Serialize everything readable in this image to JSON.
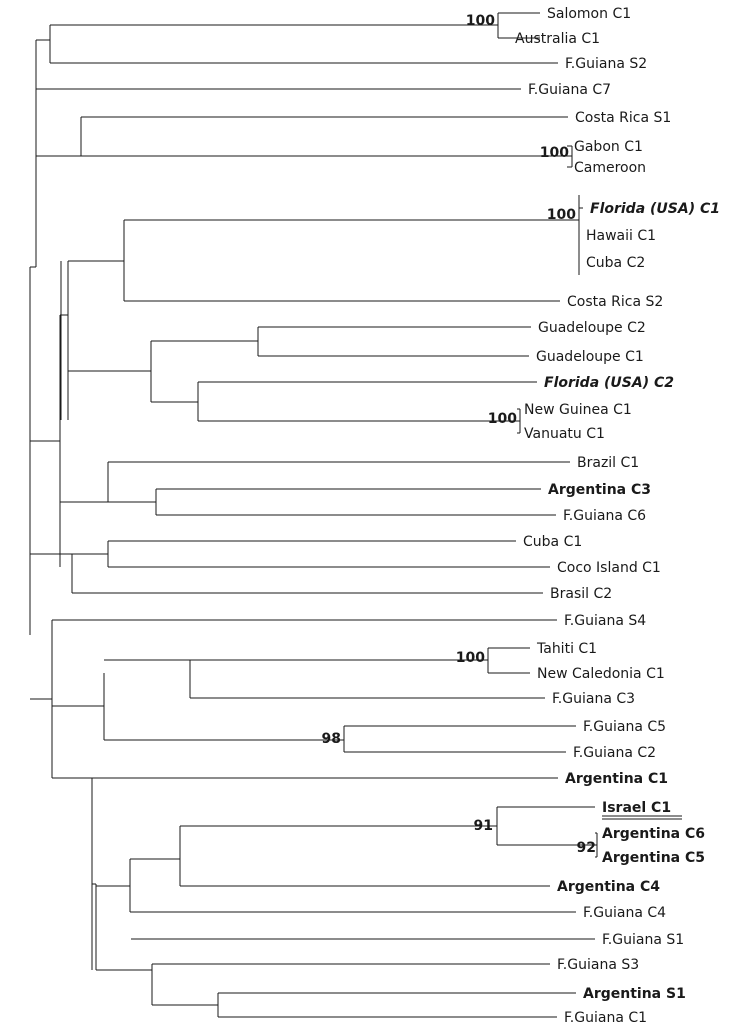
{
  "tree": {
    "leaves": [
      {
        "label": "Salomon C1",
        "bold": false,
        "italic": false,
        "underline": false
      },
      {
        "label": "Australia C1",
        "bold": false,
        "italic": false,
        "underline": false
      },
      {
        "label": "F.Guiana S2",
        "bold": false,
        "italic": false,
        "underline": false
      },
      {
        "label": "F.Guiana C7",
        "bold": false,
        "italic": false,
        "underline": false
      },
      {
        "label": "Costa Rica S1",
        "bold": false,
        "italic": false,
        "underline": false
      },
      {
        "label": "Gabon C1",
        "bold": false,
        "italic": false,
        "underline": false
      },
      {
        "label": "Cameroon",
        "bold": false,
        "italic": false,
        "underline": false
      },
      {
        "label": "Florida (USA) C1",
        "bold": true,
        "italic": true,
        "underline": false
      },
      {
        "label": "Hawaii C1",
        "bold": false,
        "italic": false,
        "underline": false
      },
      {
        "label": "Cuba C2",
        "bold": false,
        "italic": false,
        "underline": false
      },
      {
        "label": "Costa Rica S2",
        "bold": false,
        "italic": false,
        "underline": false
      },
      {
        "label": "Guadeloupe C2",
        "bold": false,
        "italic": false,
        "underline": false
      },
      {
        "label": "Guadeloupe C1",
        "bold": false,
        "italic": false,
        "underline": false
      },
      {
        "label": "Florida (USA) C2",
        "bold": true,
        "italic": true,
        "underline": false
      },
      {
        "label": "New Guinea C1",
        "bold": false,
        "italic": false,
        "underline": false
      },
      {
        "label": "Vanuatu C1",
        "bold": false,
        "italic": false,
        "underline": false
      },
      {
        "label": "Brazil C1",
        "bold": false,
        "italic": false,
        "underline": false
      },
      {
        "label": "Argentina C3",
        "bold": true,
        "italic": false,
        "underline": false
      },
      {
        "label": "F.Guiana C6",
        "bold": false,
        "italic": false,
        "underline": false
      },
      {
        "label": "Cuba C1",
        "bold": false,
        "italic": false,
        "underline": false
      },
      {
        "label": "Coco Island C1",
        "bold": false,
        "italic": false,
        "underline": false
      },
      {
        "label": "Brasil C2",
        "bold": false,
        "italic": false,
        "underline": false
      },
      {
        "label": "F.Guiana S4",
        "bold": false,
        "italic": false,
        "underline": false
      },
      {
        "label": "Tahiti C1",
        "bold": false,
        "italic": false,
        "underline": false
      },
      {
        "label": "New Caledonia C1",
        "bold": false,
        "italic": false,
        "underline": false
      },
      {
        "label": "F.Guiana C3",
        "bold": false,
        "italic": false,
        "underline": false
      },
      {
        "label": "F.Guiana C5",
        "bold": false,
        "italic": false,
        "underline": false
      },
      {
        "label": "F.Guiana C2",
        "bold": false,
        "italic": false,
        "underline": false
      },
      {
        "label": "Argentina C1",
        "bold": true,
        "italic": false,
        "underline": false
      },
      {
        "label": "Israel C1",
        "bold": true,
        "italic": false,
        "underline": true
      },
      {
        "label": "Argentina C6",
        "bold": true,
        "italic": false,
        "underline": false
      },
      {
        "label": "Argentina C5",
        "bold": true,
        "italic": false,
        "underline": false
      },
      {
        "label": "Argentina C4",
        "bold": true,
        "italic": false,
        "underline": false
      },
      {
        "label": "F.Guiana C4",
        "bold": false,
        "italic": false,
        "underline": false
      },
      {
        "label": "F.Guiana S1",
        "bold": false,
        "italic": false,
        "underline": false
      },
      {
        "label": "F.Guiana S3",
        "bold": false,
        "italic": false,
        "underline": false
      },
      {
        "label": "Argentina S1",
        "bold": true,
        "italic": false,
        "underline": false
      },
      {
        "label": "F.Guiana C1",
        "bold": false,
        "italic": false,
        "underline": false
      }
    ],
    "bootstrap_values": [
      {
        "clade": "Salomon C1 + Australia C1",
        "value": "100"
      },
      {
        "clade": "Gabon C1 + Cameroon",
        "value": "100"
      },
      {
        "clade": "Florida (USA) C1 + Hawaii C1 + Cuba C2",
        "value": "100"
      },
      {
        "clade": "New Guinea C1 + Vanuatu C1",
        "value": "100"
      },
      {
        "clade": "Tahiti C1 + New Caledonia C1",
        "value": "100"
      },
      {
        "clade": "F.Guiana C5 + F.Guiana C2",
        "value": "98"
      },
      {
        "clade": "Israel C1 + Argentina C6 + Argentina C5",
        "value": "91"
      },
      {
        "clade": "Argentina C6 + Argentina C5",
        "value": "92"
      }
    ]
  }
}
